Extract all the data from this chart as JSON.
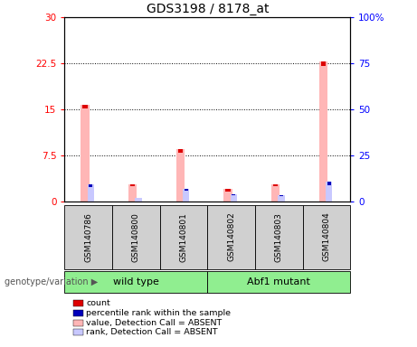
{
  "title": "GDS3198 / 8178_at",
  "samples": [
    "GSM140786",
    "GSM140800",
    "GSM140801",
    "GSM140802",
    "GSM140803",
    "GSM140804"
  ],
  "value_absent": [
    15.8,
    2.8,
    8.5,
    2.0,
    2.8,
    22.8
  ],
  "rank_absent_pct": [
    9.0,
    2.0,
    6.5,
    4.0,
    3.3,
    10.5
  ],
  "count_marker_height": [
    0.7,
    0.4,
    0.6,
    0.4,
    0.4,
    0.8
  ],
  "rank_marker_pct": [
    7.5,
    1.5,
    5.0,
    3.0,
    2.5,
    8.5
  ],
  "ylim_left": [
    0,
    30
  ],
  "ylim_right": [
    0,
    100
  ],
  "yticks_left": [
    0,
    7.5,
    15,
    22.5,
    30
  ],
  "yticks_right": [
    0,
    25,
    50,
    75,
    100
  ],
  "yticklabels_left": [
    "0",
    "7.5",
    "15",
    "22.5",
    "30"
  ],
  "yticklabels_right": [
    "0",
    "25",
    "50",
    "75",
    "100%"
  ],
  "color_value_absent": "#ffb6b6",
  "color_rank_absent": "#c8c8ff",
  "color_count": "#dd0000",
  "color_rank_present": "#0000bb",
  "legend_items": [
    {
      "label": "count",
      "color": "#dd0000"
    },
    {
      "label": "percentile rank within the sample",
      "color": "#0000bb"
    },
    {
      "label": "value, Detection Call = ABSENT",
      "color": "#ffb6b6"
    },
    {
      "label": "rank, Detection Call = ABSENT",
      "color": "#c8c8ff"
    }
  ],
  "annotation_label": "genotype/variation",
  "background_color": "#ffffff",
  "gray_row_color": "#d0d0d0",
  "green_row_color": "#90ee90",
  "group_spans": [
    [
      0,
      2,
      "wild type"
    ],
    [
      3,
      5,
      "Abf1 mutant"
    ]
  ]
}
